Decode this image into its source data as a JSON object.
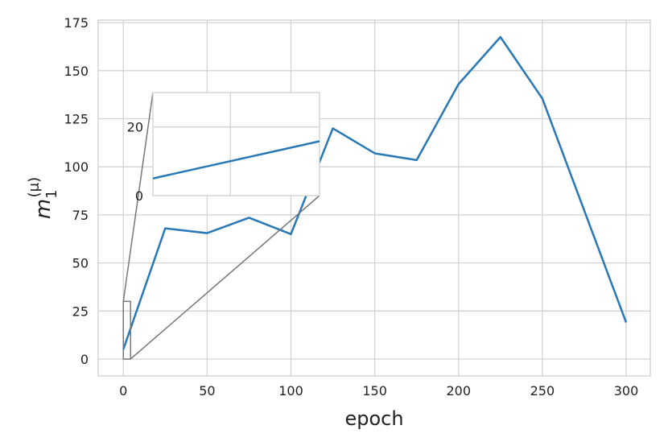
{
  "chart_data": {
    "type": "line",
    "xlabel": "epoch",
    "ylabel": {
      "base": "m",
      "sub": "1",
      "sup": "(μ)"
    },
    "x": [
      0,
      25,
      50,
      75,
      100,
      125,
      150,
      175,
      200,
      225,
      250,
      300
    ],
    "series": [
      {
        "color": "#2878b5",
        "values": [
          5,
          68,
          65.5,
          73.5,
          65,
          120,
          107,
          103.5,
          143,
          167.5,
          135.5,
          19
        ]
      }
    ],
    "xlim": [
      -15,
      314.4
    ],
    "ylim": [
      -8.8,
      176.3
    ],
    "xticks": [
      0,
      50,
      100,
      150,
      200,
      250,
      300
    ],
    "yticks": [
      0,
      25,
      50,
      75,
      100,
      125,
      150,
      175
    ],
    "grid": true,
    "inset": {
      "xlim": [
        0,
        4.3
      ],
      "ylim": [
        0,
        30
      ],
      "xgrid": [
        2
      ],
      "yticks": [
        0,
        20
      ]
    }
  }
}
